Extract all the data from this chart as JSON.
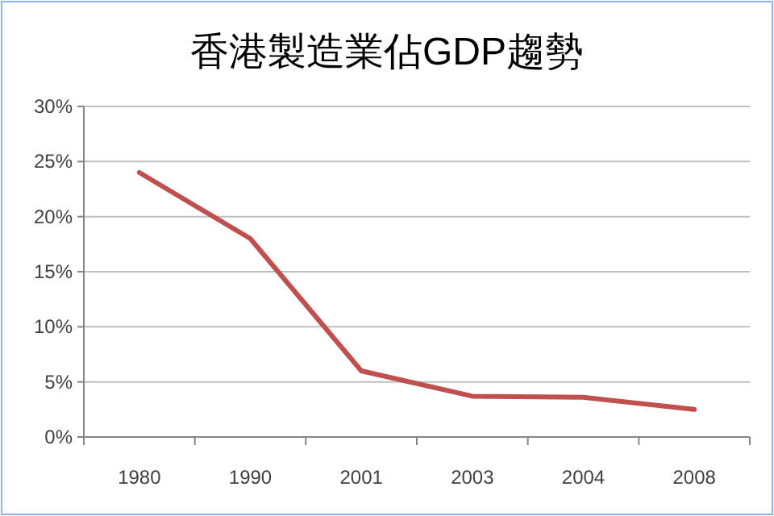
{
  "chart_data": {
    "type": "line",
    "title": "香港製造業佔GDP趨勢",
    "categories": [
      "1980",
      "1990",
      "2001",
      "2003",
      "2004",
      "2008"
    ],
    "series": [
      {
        "color": "#c0504d",
        "values": [
          24,
          18,
          6,
          3.7,
          3.6,
          2.5
        ]
      }
    ],
    "ylim": [
      0,
      30
    ],
    "yticks": [
      {
        "value": 0,
        "label": "0%"
      },
      {
        "value": 5,
        "label": "5%"
      },
      {
        "value": 10,
        "label": "10%"
      },
      {
        "value": 15,
        "label": "15%"
      },
      {
        "value": 20,
        "label": "20%"
      },
      {
        "value": 25,
        "label": "25%"
      },
      {
        "value": 30,
        "label": "30%"
      }
    ],
    "grid": "y",
    "marker": "none",
    "line_style": "solid"
  }
}
